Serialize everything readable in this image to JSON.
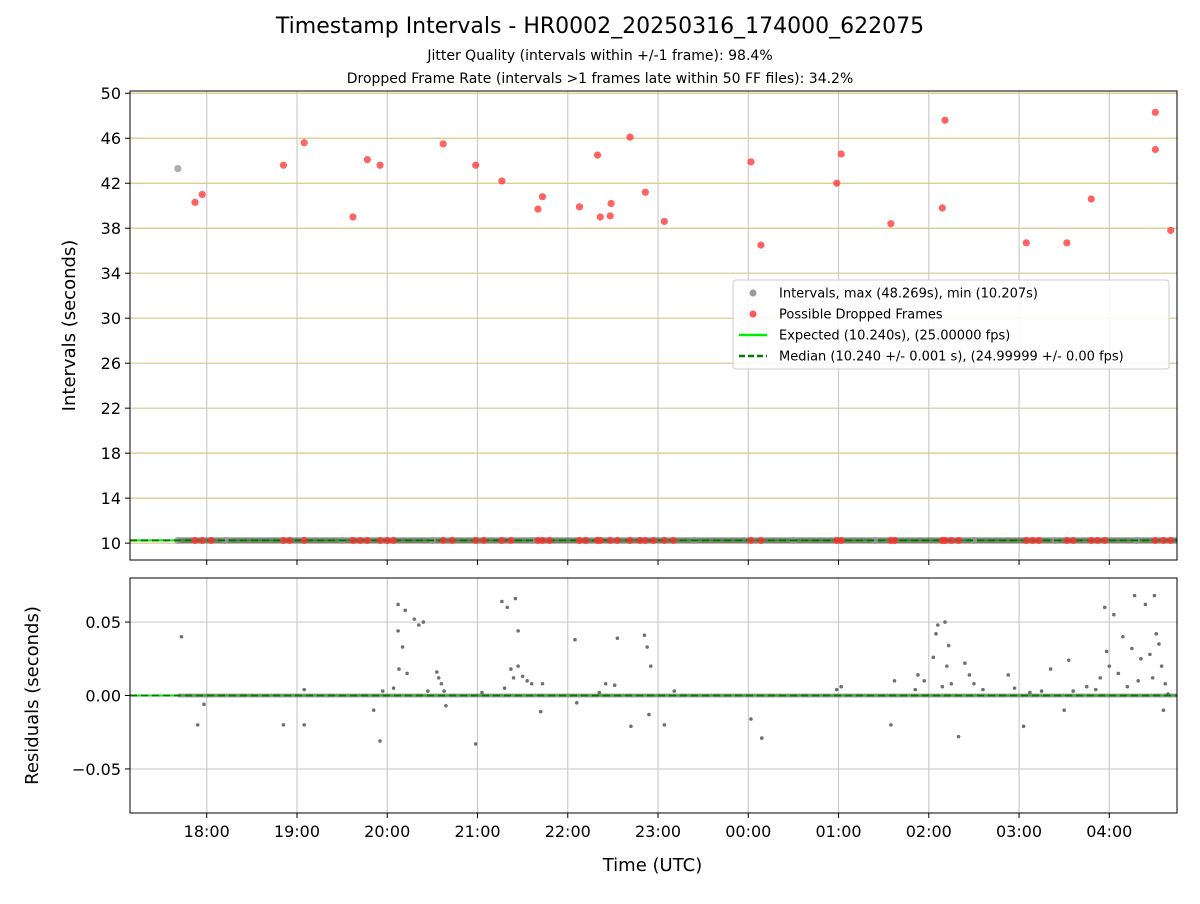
{
  "header": {
    "title": "Timestamp Intervals - HR0002_20250316_174000_622075",
    "subtitle_jitter": "Jitter Quality (intervals within +/-1 frame): 98.4%",
    "subtitle_dropped": "Dropped Frame Rate (intervals >1 frames late within 50 FF files): 34.2%"
  },
  "colors": {
    "intervals": "#999999",
    "dropped": "#ff3030",
    "expected": "#00ee00",
    "median": "#007a00",
    "residual": "#707070",
    "hgrid_top": "#d8c78a",
    "grid": "#cccccc"
  },
  "chart_data": [
    {
      "type": "scatter",
      "panel": "intervals",
      "ylabel": "Intervals (seconds)",
      "xlabel": "",
      "xlim": [
        17.15,
        28.75
      ],
      "ylim": [
        8.5,
        50.2
      ],
      "yticks": [
        10,
        14,
        18,
        22,
        26,
        30,
        34,
        38,
        42,
        46,
        50
      ],
      "grid": true,
      "legend_position": "center-right",
      "legend": [
        "Intervals, max (48.269s), min (10.207s)",
        "Possible Dropped Frames",
        "Expected (10.240s), (25.00000 fps)",
        "Median (10.240 +/- 0.001 s), (24.99999 +/- 0.00 fps)"
      ],
      "expected_value": 10.24,
      "median_value": 10.24,
      "series": [
        {
          "name": "Intervals, max (48.269s), min (10.207s)",
          "kind": "gray-points",
          "points": [
            [
              17.68,
              43.3
            ],
            [
              17.68,
              10.24
            ],
            [
              18.2,
              10.24
            ],
            [
              19.5,
              10.24
            ],
            [
              20.5,
              10.24
            ],
            [
              21.6,
              10.24
            ],
            [
              23.4,
              10.24
            ],
            [
              24.5,
              10.24
            ],
            [
              25.4,
              10.24
            ],
            [
              26.5,
              10.24
            ],
            [
              27.4,
              10.24
            ],
            [
              28.3,
              10.24
            ]
          ]
        },
        {
          "name": "Possible Dropped Frames",
          "kind": "red-points",
          "points": [
            [
              17.87,
              40.3
            ],
            [
              17.95,
              41.0
            ],
            [
              18.85,
              43.6
            ],
            [
              19.08,
              45.6
            ],
            [
              19.62,
              39.0
            ],
            [
              19.78,
              44.1
            ],
            [
              19.92,
              43.6
            ],
            [
              20.62,
              45.5
            ],
            [
              20.98,
              43.6
            ],
            [
              21.27,
              42.2
            ],
            [
              21.67,
              39.7
            ],
            [
              21.72,
              40.8
            ],
            [
              22.13,
              39.9
            ],
            [
              22.33,
              44.5
            ],
            [
              22.36,
              39.0
            ],
            [
              22.47,
              39.1
            ],
            [
              22.48,
              40.2
            ],
            [
              22.69,
              46.1
            ],
            [
              22.86,
              41.2
            ],
            [
              23.07,
              38.6
            ],
            [
              24.03,
              43.9
            ],
            [
              24.14,
              36.5
            ],
            [
              24.98,
              42.0
            ],
            [
              25.03,
              44.6
            ],
            [
              25.58,
              38.4
            ],
            [
              26.15,
              39.8
            ],
            [
              26.18,
              47.6
            ],
            [
              27.08,
              36.7
            ],
            [
              27.53,
              36.7
            ],
            [
              27.8,
              40.6
            ],
            [
              28.51,
              48.3
            ],
            [
              28.51,
              45.0
            ],
            [
              28.68,
              37.8
            ],
            [
              17.87,
              10.24
            ],
            [
              17.95,
              10.24
            ],
            [
              18.05,
              10.24
            ],
            [
              18.85,
              10.24
            ],
            [
              18.92,
              10.24
            ],
            [
              19.08,
              10.24
            ],
            [
              19.62,
              10.24
            ],
            [
              19.7,
              10.24
            ],
            [
              19.78,
              10.24
            ],
            [
              19.92,
              10.24
            ],
            [
              20.0,
              10.24
            ],
            [
              20.07,
              10.24
            ],
            [
              20.62,
              10.24
            ],
            [
              20.72,
              10.24
            ],
            [
              20.98,
              10.24
            ],
            [
              21.07,
              10.24
            ],
            [
              21.27,
              10.24
            ],
            [
              21.37,
              10.24
            ],
            [
              21.67,
              10.24
            ],
            [
              21.72,
              10.24
            ],
            [
              21.8,
              10.24
            ],
            [
              22.13,
              10.24
            ],
            [
              22.2,
              10.24
            ],
            [
              22.33,
              10.24
            ],
            [
              22.36,
              10.24
            ],
            [
              22.47,
              10.24
            ],
            [
              22.55,
              10.24
            ],
            [
              22.69,
              10.24
            ],
            [
              22.8,
              10.24
            ],
            [
              22.86,
              10.24
            ],
            [
              22.95,
              10.24
            ],
            [
              23.07,
              10.24
            ],
            [
              23.17,
              10.24
            ],
            [
              24.03,
              10.24
            ],
            [
              24.14,
              10.24
            ],
            [
              24.98,
              10.24
            ],
            [
              25.03,
              10.24
            ],
            [
              25.58,
              10.24
            ],
            [
              25.62,
              10.24
            ],
            [
              26.15,
              10.24
            ],
            [
              26.18,
              10.24
            ],
            [
              26.25,
              10.24
            ],
            [
              26.33,
              10.24
            ],
            [
              27.08,
              10.24
            ],
            [
              27.15,
              10.24
            ],
            [
              27.22,
              10.24
            ],
            [
              27.53,
              10.24
            ],
            [
              27.6,
              10.24
            ],
            [
              27.8,
              10.24
            ],
            [
              27.87,
              10.24
            ],
            [
              27.95,
              10.24
            ],
            [
              28.51,
              10.24
            ],
            [
              28.6,
              10.24
            ],
            [
              28.68,
              10.24
            ]
          ]
        }
      ],
      "x_ticks": [
        {
          "x": 18,
          "label": "18:00"
        },
        {
          "x": 19,
          "label": "19:00"
        },
        {
          "x": 20,
          "label": "20:00"
        },
        {
          "x": 21,
          "label": "21:00"
        },
        {
          "x": 22,
          "label": "22:00"
        },
        {
          "x": 23,
          "label": "23:00"
        },
        {
          "x": 24,
          "label": "00:00"
        },
        {
          "x": 25,
          "label": "01:00"
        },
        {
          "x": 26,
          "label": "02:00"
        },
        {
          "x": 27,
          "label": "03:00"
        },
        {
          "x": 28,
          "label": "04:00"
        }
      ]
    },
    {
      "type": "scatter",
      "panel": "residuals",
      "ylabel": "Residuals (seconds)",
      "xlabel": "Time (UTC)",
      "xlim": [
        17.15,
        28.75
      ],
      "ylim": [
        -0.08,
        0.08
      ],
      "yticks": [
        0.05,
        0.0,
        -0.05
      ],
      "ytick_labels": [
        "0.05",
        "0.00",
        "−0.05"
      ],
      "grid": true,
      "zero_line": 0.0,
      "series": [
        {
          "name": "",
          "points": [
            [
              17.72,
              0.04
            ],
            [
              17.9,
              -0.02
            ],
            [
              17.97,
              -0.006
            ],
            [
              18.85,
              -0.02
            ],
            [
              19.08,
              -0.02
            ],
            [
              19.08,
              0.004
            ],
            [
              19.85,
              -0.01
            ],
            [
              19.92,
              -0.031
            ],
            [
              19.95,
              0.003
            ],
            [
              20.07,
              0.005
            ],
            [
              20.12,
              0.062
            ],
            [
              20.12,
              0.044
            ],
            [
              20.13,
              0.018
            ],
            [
              20.17,
              0.033
            ],
            [
              20.2,
              0.058
            ],
            [
              20.22,
              0.015
            ],
            [
              20.3,
              0.052
            ],
            [
              20.35,
              0.048
            ],
            [
              20.4,
              0.05
            ],
            [
              20.45,
              0.003
            ],
            [
              20.55,
              0.016
            ],
            [
              20.57,
              0.012
            ],
            [
              20.6,
              0.008
            ],
            [
              20.63,
              0.003
            ],
            [
              20.65,
              -0.007
            ],
            [
              20.98,
              -0.033
            ],
            [
              21.05,
              0.002
            ],
            [
              21.27,
              0.064
            ],
            [
              21.3,
              0.005
            ],
            [
              21.33,
              0.06
            ],
            [
              21.37,
              0.018
            ],
            [
              21.4,
              0.012
            ],
            [
              21.42,
              0.066
            ],
            [
              21.45,
              0.044
            ],
            [
              21.45,
              0.02
            ],
            [
              21.5,
              0.013
            ],
            [
              21.55,
              0.01
            ],
            [
              21.6,
              0.008
            ],
            [
              21.7,
              -0.011
            ],
            [
              21.72,
              0.008
            ],
            [
              22.08,
              0.038
            ],
            [
              22.1,
              -0.005
            ],
            [
              22.35,
              0.002
            ],
            [
              22.42,
              0.008
            ],
            [
              22.52,
              0.007
            ],
            [
              22.55,
              0.039
            ],
            [
              22.7,
              -0.021
            ],
            [
              22.85,
              0.041
            ],
            [
              22.88,
              0.033
            ],
            [
              22.9,
              -0.013
            ],
            [
              22.92,
              0.02
            ],
            [
              23.07,
              -0.02
            ],
            [
              23.18,
              0.003
            ],
            [
              24.03,
              -0.016
            ],
            [
              24.15,
              -0.029
            ],
            [
              24.98,
              0.004
            ],
            [
              25.03,
              0.006
            ],
            [
              25.58,
              -0.02
            ],
            [
              25.62,
              0.01
            ],
            [
              25.85,
              0.004
            ],
            [
              25.88,
              0.014
            ],
            [
              25.95,
              0.01
            ],
            [
              26.05,
              0.026
            ],
            [
              26.08,
              0.042
            ],
            [
              26.1,
              0.048
            ],
            [
              26.15,
              0.006
            ],
            [
              26.18,
              0.05
            ],
            [
              26.2,
              0.02
            ],
            [
              26.22,
              0.034
            ],
            [
              26.25,
              0.008
            ],
            [
              26.33,
              -0.028
            ],
            [
              26.4,
              0.022
            ],
            [
              26.45,
              0.014
            ],
            [
              26.5,
              0.008
            ],
            [
              26.6,
              0.004
            ],
            [
              26.88,
              0.014
            ],
            [
              26.95,
              0.005
            ],
            [
              27.05,
              -0.021
            ],
            [
              27.12,
              0.002
            ],
            [
              27.25,
              0.003
            ],
            [
              27.35,
              0.018
            ],
            [
              27.5,
              -0.01
            ],
            [
              27.55,
              0.024
            ],
            [
              27.6,
              0.003
            ],
            [
              27.75,
              0.006
            ],
            [
              27.85,
              0.004
            ],
            [
              27.9,
              0.012
            ],
            [
              27.95,
              0.06
            ],
            [
              27.97,
              0.03
            ],
            [
              28.0,
              0.02
            ],
            [
              28.05,
              0.055
            ],
            [
              28.1,
              0.015
            ],
            [
              28.15,
              0.04
            ],
            [
              28.2,
              0.006
            ],
            [
              28.25,
              0.032
            ],
            [
              28.28,
              0.068
            ],
            [
              28.32,
              0.01
            ],
            [
              28.35,
              0.025
            ],
            [
              28.4,
              0.062
            ],
            [
              28.45,
              0.028
            ],
            [
              28.48,
              0.012
            ],
            [
              28.5,
              0.068
            ],
            [
              28.52,
              0.042
            ],
            [
              28.55,
              0.035
            ],
            [
              28.58,
              0.02
            ],
            [
              28.6,
              -0.01
            ],
            [
              28.62,
              0.008
            ],
            [
              28.65,
              0.001
            ]
          ]
        }
      ]
    }
  ]
}
